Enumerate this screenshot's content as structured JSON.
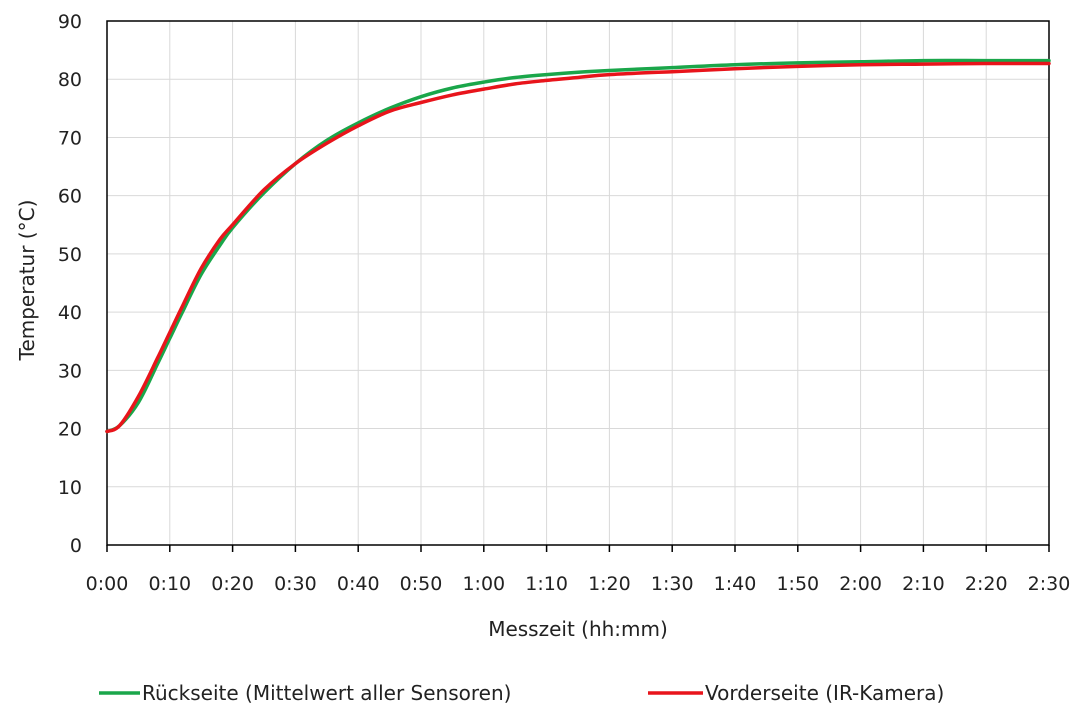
{
  "chart_data": {
    "type": "line",
    "xlabel": "Messzeit (hh:mm)",
    "ylabel": "Temperatur (°C)",
    "x_unit": "hh:mm",
    "x_ticks": [
      "0:00",
      "0:10",
      "0:20",
      "0:30",
      "0:40",
      "0:50",
      "1:00",
      "1:10",
      "1:20",
      "1:30",
      "1:40",
      "1:50",
      "2:00",
      "2:10",
      "2:20",
      "2:30"
    ],
    "xlim": [
      "0:00",
      "2:30"
    ],
    "y_ticks": [
      0,
      10,
      20,
      30,
      40,
      50,
      60,
      70,
      80,
      90
    ],
    "ylim": [
      0,
      90
    ],
    "grid": true,
    "legend_position": "bottom",
    "x": [
      "0:00",
      "0:02",
      "0:05",
      "0:08",
      "0:10",
      "0:12",
      "0:15",
      "0:18",
      "0:20",
      "0:25",
      "0:30",
      "0:35",
      "0:40",
      "0:45",
      "0:50",
      "0:55",
      "1:00",
      "1:05",
      "1:10",
      "1:15",
      "1:20",
      "1:30",
      "1:40",
      "1:50",
      "2:00",
      "2:10",
      "2:20",
      "2:30"
    ],
    "series": [
      {
        "name": "Rückseite (Mittelwert aller Sensoren)",
        "color": "#1aa64a",
        "values": [
          19.5,
          20.5,
          24.5,
          31.0,
          35.5,
          40.0,
          46.5,
          51.5,
          54.5,
          60.5,
          65.5,
          69.5,
          72.5,
          75.0,
          77.0,
          78.5,
          79.5,
          80.3,
          80.8,
          81.2,
          81.5,
          82.0,
          82.5,
          82.8,
          83.0,
          83.2,
          83.2,
          83.2
        ]
      },
      {
        "name": "Vorderseite (IR-Kamera)",
        "color": "#e8141b",
        "values": [
          19.5,
          20.5,
          25.5,
          32.0,
          36.5,
          41.0,
          47.5,
          52.5,
          55.0,
          61.0,
          65.5,
          69.0,
          72.0,
          74.5,
          76.0,
          77.3,
          78.3,
          79.2,
          79.8,
          80.3,
          80.8,
          81.3,
          81.8,
          82.2,
          82.5,
          82.6,
          82.7,
          82.7
        ]
      }
    ]
  }
}
